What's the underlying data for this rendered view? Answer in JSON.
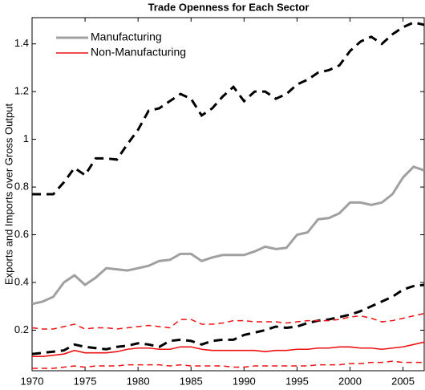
{
  "chart_data": {
    "type": "line",
    "title": "Trade Openness for Each Sector",
    "y_label": "Exports and Imports over Gross Output",
    "x": [
      1970,
      1971,
      1972,
      1973,
      1974,
      1975,
      1976,
      1977,
      1978,
      1979,
      1980,
      1981,
      1982,
      1983,
      1984,
      1985,
      1986,
      1987,
      1988,
      1989,
      1990,
      1991,
      1992,
      1993,
      1994,
      1995,
      1996,
      1997,
      1998,
      1999,
      2000,
      2001,
      2002,
      2003,
      2004,
      2005,
      2006,
      2007
    ],
    "xlim": [
      1970,
      2007
    ],
    "xticks": [
      1970,
      1975,
      1980,
      1985,
      1990,
      1995,
      2000,
      2005
    ],
    "ylim": [
      0.03,
      1.51
    ],
    "yticks": [
      0.2,
      0.4,
      0.6,
      0.8,
      1,
      1.2,
      1.4
    ],
    "grid": false,
    "legend": "northwest",
    "series": [
      {
        "name": "Manufacturing",
        "color": "#a0a0a0",
        "band_color": "#000000",
        "values": [
          0.31,
          0.32,
          0.34,
          0.4,
          0.43,
          0.39,
          0.42,
          0.46,
          0.455,
          0.45,
          0.46,
          0.47,
          0.49,
          0.495,
          0.52,
          0.52,
          0.49,
          0.505,
          0.515,
          0.515,
          0.515,
          0.53,
          0.55,
          0.54,
          0.545,
          0.6,
          0.61,
          0.665,
          0.67,
          0.69,
          0.735,
          0.735,
          0.725,
          0.735,
          0.77,
          0.84,
          0.885,
          0.87
        ],
        "upper": [
          0.77,
          0.77,
          0.77,
          0.82,
          0.88,
          0.85,
          0.92,
          0.92,
          0.915,
          0.98,
          1.04,
          1.12,
          1.13,
          1.16,
          1.19,
          1.17,
          1.1,
          1.13,
          1.18,
          1.22,
          1.16,
          1.2,
          1.2,
          1.17,
          1.19,
          1.23,
          1.25,
          1.28,
          1.29,
          1.31,
          1.37,
          1.41,
          1.43,
          1.4,
          1.44,
          1.47,
          1.49,
          1.48
        ],
        "lower": [
          0.1,
          0.105,
          0.11,
          0.115,
          0.14,
          0.13,
          0.125,
          0.12,
          0.13,
          0.135,
          0.145,
          0.14,
          0.13,
          0.155,
          0.16,
          0.155,
          0.14,
          0.155,
          0.16,
          0.16,
          0.18,
          0.19,
          0.2,
          0.215,
          0.21,
          0.215,
          0.23,
          0.24,
          0.245,
          0.255,
          0.265,
          0.28,
          0.3,
          0.32,
          0.34,
          0.37,
          0.385,
          0.39
        ]
      },
      {
        "name": "Non-Manufacturing",
        "color": "#ee1111",
        "band_color": "#ee1111",
        "values": [
          0.09,
          0.09,
          0.095,
          0.1,
          0.115,
          0.105,
          0.105,
          0.105,
          0.11,
          0.12,
          0.125,
          0.125,
          0.12,
          0.12,
          0.13,
          0.13,
          0.12,
          0.115,
          0.115,
          0.115,
          0.115,
          0.115,
          0.11,
          0.115,
          0.115,
          0.12,
          0.12,
          0.125,
          0.125,
          0.13,
          0.13,
          0.125,
          0.125,
          0.12,
          0.125,
          0.13,
          0.14,
          0.15
        ],
        "upper": [
          0.21,
          0.205,
          0.205,
          0.215,
          0.225,
          0.205,
          0.21,
          0.21,
          0.205,
          0.21,
          0.215,
          0.22,
          0.215,
          0.21,
          0.245,
          0.245,
          0.225,
          0.225,
          0.23,
          0.24,
          0.24,
          0.235,
          0.235,
          0.235,
          0.23,
          0.235,
          0.24,
          0.24,
          0.24,
          0.245,
          0.255,
          0.26,
          0.25,
          0.235,
          0.24,
          0.25,
          0.26,
          0.27
        ],
        "lower": [
          0.04,
          0.04,
          0.04,
          0.045,
          0.05,
          0.045,
          0.05,
          0.05,
          0.05,
          0.055,
          0.055,
          0.055,
          0.055,
          0.05,
          0.055,
          0.05,
          0.05,
          0.05,
          0.05,
          0.045,
          0.045,
          0.05,
          0.05,
          0.05,
          0.05,
          0.05,
          0.05,
          0.055,
          0.055,
          0.055,
          0.06,
          0.06,
          0.065,
          0.065,
          0.07,
          0.065,
          0.065,
          0.065
        ]
      }
    ]
  }
}
